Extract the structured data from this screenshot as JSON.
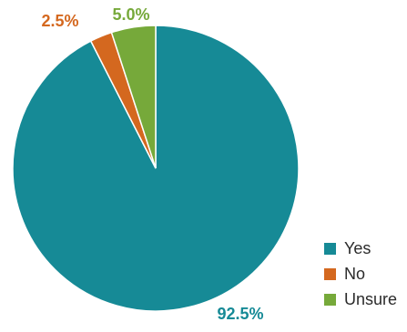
{
  "chart_data": {
    "type": "pie",
    "title": "",
    "start_angle_deg": 0,
    "direction": "counterclockwise",
    "legend_position": "bottom-right",
    "slices": [
      {
        "label": "Yes",
        "value": 92.5,
        "value_label": "92.5%",
        "color": "#168a96",
        "label_color": "#168a96"
      },
      {
        "label": "No",
        "value": 2.5,
        "value_label": "2.5%",
        "color": "#d4681f",
        "label_color": "#d4681f"
      },
      {
        "label": "Unsure",
        "value": 5.0,
        "value_label": "5.0%",
        "color": "#76a93a",
        "label_color": "#76a93a"
      }
    ]
  }
}
